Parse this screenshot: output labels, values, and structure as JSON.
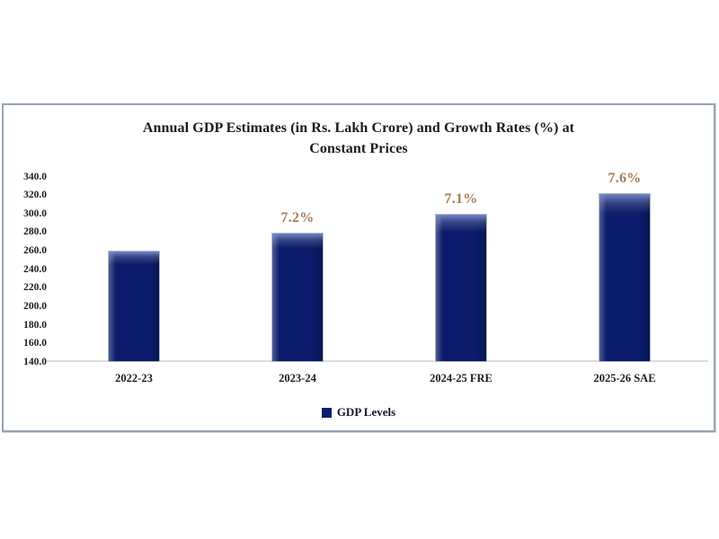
{
  "chart": {
    "title_line1": "Annual GDP Estimates (in Rs. Lakh Crore) and Growth Rates (%) at",
    "title_line2": "Constant Prices"
  },
  "chart_data": {
    "type": "bar",
    "title": "Annual GDP Estimates (in Rs. Lakh Crore) and Growth Rates (%) at Constant Prices",
    "categories": [
      "2022-23",
      "2023-24",
      "2024-25 FRE",
      "2025-26 SAE"
    ],
    "series": [
      {
        "name": "GDP Levels",
        "values": [
          260.5,
          279.5,
          299.5,
          322.0
        ]
      }
    ],
    "growth_labels": [
      "",
      "7.2%",
      "7.1%",
      "7.6%"
    ],
    "ytick_labels": [
      "340.0",
      "320.0",
      "300.0",
      "280.0",
      "260.0",
      "240.0",
      "220.0",
      "200.0",
      "180.0",
      "160.0",
      "140.0"
    ],
    "ylim": [
      140,
      340
    ],
    "ytick_step": 20,
    "grid": false,
    "legend_entries": [
      "GDP Levels"
    ],
    "legend_position": "bottom",
    "colors": {
      "bar": "#0a1c6b",
      "growth_label": "#a57b58",
      "axis_line": "#dcdcdc",
      "frame_border": "#97a3b5",
      "text": "#1b1b1b"
    }
  }
}
